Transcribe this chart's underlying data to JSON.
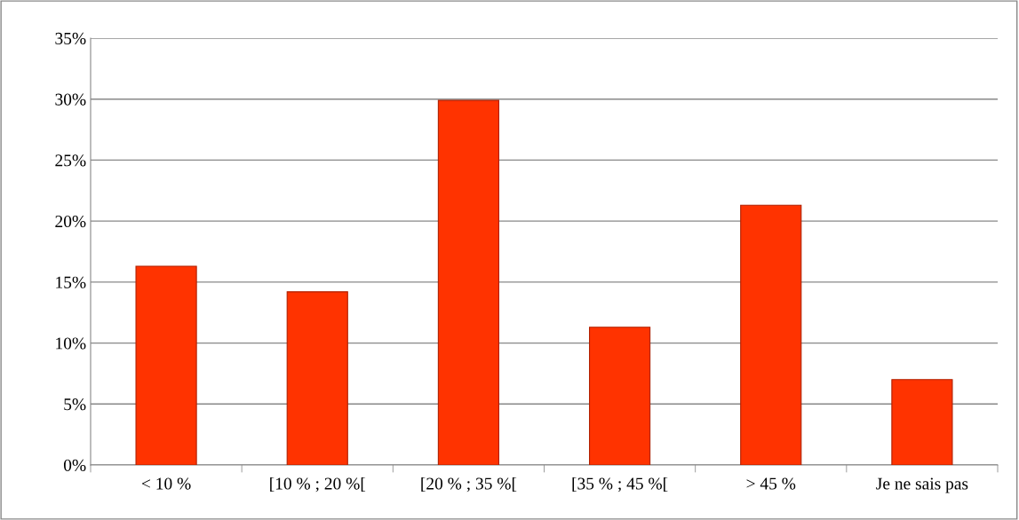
{
  "chart_data": {
    "type": "bar",
    "categories": [
      "< 10 %",
      "[10 % ; 20 %[",
      "[20 % ; 35 %[",
      "[35 % ; 45 %[",
      "> 45 %",
      "Je ne sais pas"
    ],
    "values": [
      16.3,
      14.2,
      29.9,
      11.3,
      21.3,
      7.0
    ],
    "color": "#ff3300",
    "ylim": [
      0,
      35
    ],
    "yticks": [
      {
        "value": 0,
        "label": "0%"
      },
      {
        "value": 5,
        "label": "5%"
      },
      {
        "value": 10,
        "label": "10%"
      },
      {
        "value": 15,
        "label": "15%"
      },
      {
        "value": 20,
        "label": "20%"
      },
      {
        "value": 25,
        "label": "25%"
      },
      {
        "value": 30,
        "label": "30%"
      },
      {
        "value": 35,
        "label": "35%"
      }
    ],
    "grid": "y",
    "legend": false
  }
}
